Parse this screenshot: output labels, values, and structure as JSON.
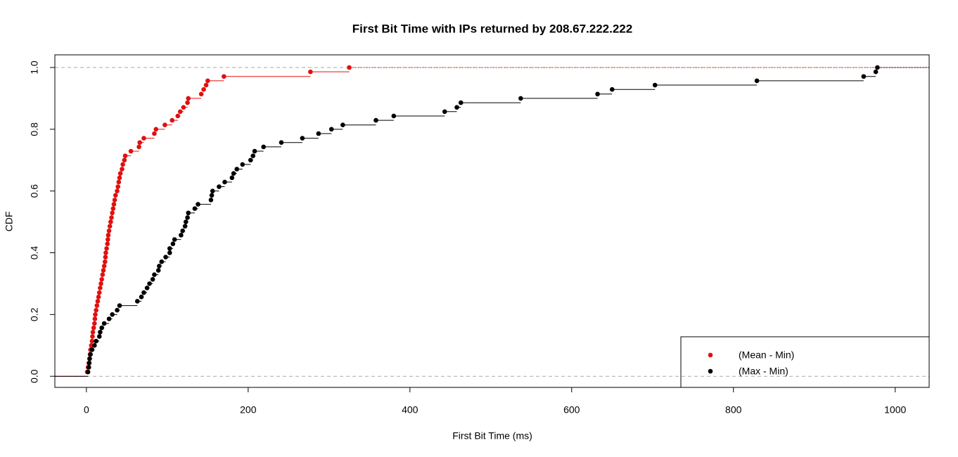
{
  "chart_data": {
    "type": "ecdf",
    "title": "First Bit Time with IPs returned by 208.67.222.222",
    "x_label": "First Bit Time (ms)",
    "y_label": "CDF",
    "xlim": [
      -39,
      1042
    ],
    "ylim": [
      -0.036,
      1.041
    ],
    "xticks": [
      0,
      200,
      400,
      600,
      800,
      1000
    ],
    "yticks": [
      {
        "value": 0,
        "label": "0.0"
      },
      0.2,
      0.4,
      0.6,
      0.8,
      {
        "value": 1,
        "label": "1.0"
      }
    ],
    "reference_lines": [
      0,
      1
    ],
    "legend_position": "bottomright",
    "series": [
      {
        "name": "(Mean - Min)",
        "color": "#e0100f",
        "x": [
          1,
          2,
          3,
          4,
          4.5,
          5,
          6,
          7,
          7.5,
          8,
          9,
          10,
          10.5,
          11,
          12,
          13,
          14,
          15,
          16,
          17,
          18,
          19,
          20,
          21,
          22,
          23,
          23.5,
          24,
          25,
          26,
          26.5,
          27,
          28,
          29,
          30,
          31,
          32,
          33,
          34,
          35,
          36,
          38,
          39,
          40,
          41,
          42,
          44,
          45,
          47,
          48,
          55,
          65,
          66,
          71,
          84,
          86,
          97,
          106,
          113,
          116,
          120,
          125,
          126,
          142,
          145,
          148,
          150,
          170,
          277,
          325
        ],
        "y": [
          0.014,
          0.029,
          0.043,
          0.057,
          0.071,
          0.086,
          0.1,
          0.114,
          0.129,
          0.143,
          0.157,
          0.171,
          0.186,
          0.2,
          0.214,
          0.229,
          0.243,
          0.257,
          0.271,
          0.286,
          0.3,
          0.314,
          0.329,
          0.343,
          0.357,
          0.371,
          0.386,
          0.4,
          0.414,
          0.429,
          0.443,
          0.457,
          0.471,
          0.486,
          0.5,
          0.514,
          0.529,
          0.543,
          0.557,
          0.571,
          0.586,
          0.6,
          0.614,
          0.629,
          0.643,
          0.657,
          0.671,
          0.686,
          0.7,
          0.714,
          0.729,
          0.743,
          0.757,
          0.771,
          0.786,
          0.8,
          0.814,
          0.829,
          0.843,
          0.857,
          0.871,
          0.886,
          0.9,
          0.914,
          0.929,
          0.943,
          0.957,
          0.971,
          0.986,
          1.0
        ]
      },
      {
        "name": "(Max - Min)",
        "color": "#000000",
        "x": [
          2,
          3,
          3.5,
          4,
          5,
          7,
          10,
          12,
          16,
          17,
          19,
          22,
          28,
          32,
          38,
          41,
          63,
          68,
          71,
          75,
          78,
          82,
          84,
          89,
          90,
          93,
          98,
          103,
          103,
          107,
          109,
          117,
          119,
          122,
          123,
          125,
          126,
          134,
          138,
          154,
          155,
          156,
          164,
          171,
          180,
          182,
          186,
          193,
          203,
          206,
          208,
          219,
          241,
          267,
          287,
          303,
          317,
          358,
          380,
          443,
          458,
          463,
          537,
          632,
          650,
          703,
          829,
          961,
          976,
          978
        ],
        "y": [
          0.014,
          0.029,
          0.043,
          0.057,
          0.071,
          0.086,
          0.1,
          0.114,
          0.129,
          0.143,
          0.157,
          0.171,
          0.186,
          0.2,
          0.214,
          0.229,
          0.243,
          0.257,
          0.271,
          0.286,
          0.3,
          0.314,
          0.329,
          0.343,
          0.357,
          0.371,
          0.386,
          0.4,
          0.414,
          0.429,
          0.443,
          0.457,
          0.471,
          0.486,
          0.5,
          0.514,
          0.529,
          0.543,
          0.557,
          0.571,
          0.586,
          0.6,
          0.614,
          0.629,
          0.643,
          0.657,
          0.671,
          0.686,
          0.7,
          0.714,
          0.729,
          0.743,
          0.757,
          0.771,
          0.786,
          0.8,
          0.814,
          0.829,
          0.843,
          0.857,
          0.871,
          0.886,
          0.9,
          0.914,
          0.929,
          0.943,
          0.957,
          0.971,
          0.986,
          1.0
        ]
      }
    ]
  }
}
